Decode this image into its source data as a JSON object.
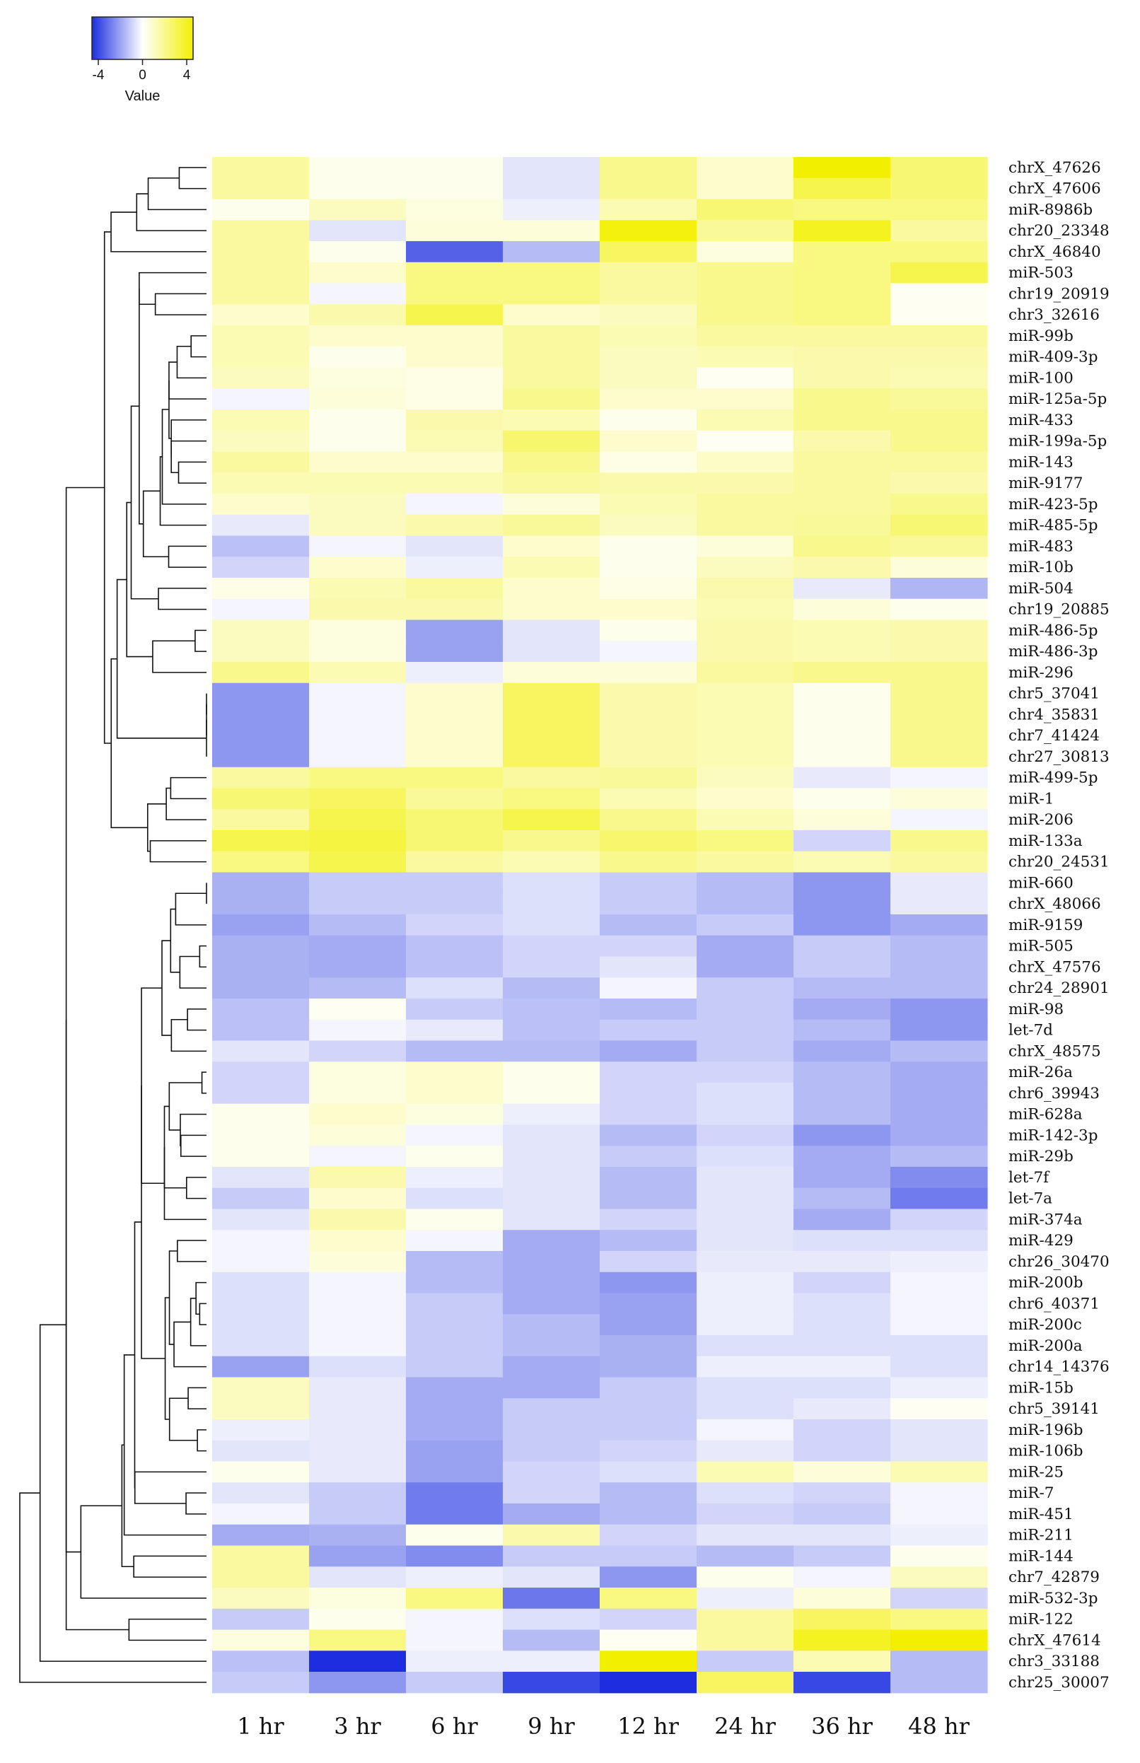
{
  "chart_data": {
    "type": "heatmap",
    "columns": [
      "1 hr",
      "3 hr",
      "6 hr",
      "9 hr",
      "12 hr",
      "24 hr",
      "36 hr",
      "48 hr"
    ],
    "rows": [
      "chrX_47626",
      "chrX_47606",
      "miR-8986b",
      "chr20_23348",
      "chrX_46840",
      "miR-503",
      "chr19_20919",
      "chr3_32616",
      "miR-99b",
      "miR-409-3p",
      "miR-100",
      "miR-125a-5p",
      "miR-433",
      "miR-199a-5p",
      "miR-143",
      "miR-9177",
      "miR-423-5p",
      "miR-485-5p",
      "miR-483",
      "miR-10b",
      "miR-504",
      "chr19_20885",
      "miR-486-5p",
      "miR-486-3p",
      "miR-296",
      "chr5_37041",
      "chr4_35831",
      "chr7_41424",
      "chr27_30813",
      "miR-499-5p",
      "miR-1",
      "miR-206",
      "miR-133a",
      "chr20_24531",
      "miR-660",
      "chrX_48066",
      "miR-9159",
      "miR-505",
      "chrX_47576",
      "chr24_28901",
      "miR-98",
      "let-7d",
      "chrX_48575",
      "miR-26a",
      "chr6_39943",
      "miR-628a",
      "miR-142-3p",
      "miR-29b",
      "let-7f",
      "let-7a",
      "miR-374a",
      "miR-429",
      "chr26_30470",
      "miR-200b",
      "chr6_40371",
      "miR-200c",
      "miR-200a",
      "chr14_14376",
      "miR-15b",
      "chr5_39141",
      "miR-196b",
      "miR-106b",
      "miR-25",
      "miR-7",
      "miR-451",
      "miR-211",
      "miR-144",
      "chr7_42879",
      "miR-532-3p",
      "miR-122",
      "chrX_47614",
      "chr3_33188",
      "chr25_30007"
    ],
    "values": [
      [
        1.5,
        0.3,
        0.3,
        -0.5,
        1.8,
        0.8,
        4.0,
        2.2
      ],
      [
        1.5,
        0.3,
        0.3,
        -0.5,
        1.8,
        0.8,
        2.8,
        2.2
      ],
      [
        0.3,
        1.0,
        0.5,
        -0.3,
        1.2,
        2.2,
        2.0,
        2.0
      ],
      [
        1.5,
        -0.5,
        0.6,
        0.6,
        3.8,
        1.6,
        3.5,
        1.5
      ],
      [
        1.5,
        0.3,
        -3.0,
        -1.3,
        2.5,
        0.5,
        2.0,
        2.0
      ],
      [
        1.5,
        0.8,
        2.0,
        2.0,
        1.5,
        1.8,
        2.0,
        2.8
      ],
      [
        1.5,
        -0.2,
        2.0,
        2.0,
        1.5,
        1.8,
        2.0,
        0.2
      ],
      [
        0.8,
        1.3,
        2.8,
        0.8,
        1.0,
        1.8,
        2.0,
        0.2
      ],
      [
        1.2,
        0.8,
        0.8,
        1.5,
        1.2,
        1.5,
        1.5,
        1.5
      ],
      [
        1.2,
        0.3,
        0.8,
        1.5,
        1.0,
        1.2,
        1.3,
        1.3
      ],
      [
        1.0,
        0.5,
        0.4,
        1.5,
        1.0,
        0.2,
        1.3,
        1.2
      ],
      [
        -0.2,
        0.6,
        0.4,
        1.8,
        0.8,
        0.8,
        1.8,
        1.6
      ],
      [
        1.2,
        0.3,
        1.3,
        1.2,
        0.3,
        1.2,
        1.8,
        1.8
      ],
      [
        1.0,
        0.3,
        1.2,
        2.3,
        0.8,
        0.2,
        1.3,
        1.8
      ],
      [
        1.5,
        0.8,
        0.8,
        1.8,
        0.4,
        0.9,
        1.5,
        1.5
      ],
      [
        1.2,
        1.2,
        1.2,
        1.5,
        1.3,
        1.3,
        1.5,
        1.3
      ],
      [
        0.8,
        1.0,
        -0.2,
        0.6,
        1.2,
        1.5,
        1.5,
        1.8
      ],
      [
        -0.4,
        1.0,
        1.3,
        1.6,
        1.0,
        1.5,
        1.6,
        2.2
      ],
      [
        -1.2,
        -0.2,
        -0.5,
        0.8,
        0.3,
        0.6,
        1.8,
        1.6
      ],
      [
        -0.8,
        0.8,
        -0.3,
        1.2,
        0.3,
        1.0,
        1.3,
        0.6
      ],
      [
        0.4,
        1.2,
        1.5,
        0.8,
        0.4,
        1.3,
        -0.4,
        -1.4
      ],
      [
        -0.2,
        1.3,
        1.3,
        0.8,
        0.8,
        1.2,
        0.6,
        0.3
      ],
      [
        1.0,
        0.5,
        -1.8,
        -0.5,
        0.3,
        1.3,
        1.2,
        1.3
      ],
      [
        1.0,
        0.5,
        -1.8,
        -0.5,
        -0.2,
        1.3,
        1.2,
        1.3
      ],
      [
        1.8,
        1.2,
        -0.3,
        0.6,
        0.6,
        1.5,
        1.8,
        1.8
      ],
      [
        -2.0,
        -0.2,
        0.8,
        2.5,
        1.3,
        1.2,
        0.3,
        1.8
      ],
      [
        -2.0,
        -0.2,
        0.8,
        2.5,
        1.3,
        1.2,
        0.3,
        1.8
      ],
      [
        -2.0,
        -0.2,
        0.8,
        2.5,
        1.3,
        1.2,
        0.3,
        1.8
      ],
      [
        -2.0,
        -0.2,
        0.8,
        2.5,
        1.3,
        1.2,
        0.3,
        1.8
      ],
      [
        1.5,
        2.0,
        2.0,
        1.5,
        1.6,
        1.0,
        -0.4,
        -0.2
      ],
      [
        2.2,
        2.5,
        1.6,
        2.0,
        1.2,
        0.8,
        0.3,
        0.6
      ],
      [
        1.5,
        2.8,
        2.2,
        2.8,
        1.8,
        1.2,
        0.6,
        -0.2
      ],
      [
        2.8,
        3.0,
        2.2,
        1.8,
        2.3,
        2.0,
        -0.8,
        1.8
      ],
      [
        2.0,
        2.8,
        1.5,
        1.2,
        1.8,
        1.5,
        1.2,
        1.5
      ],
      [
        -1.5,
        -1.0,
        -1.0,
        -0.6,
        -1.0,
        -1.3,
        -2.0,
        -0.4
      ],
      [
        -1.5,
        -1.0,
        -1.0,
        -0.6,
        -1.0,
        -1.3,
        -2.0,
        -0.4
      ],
      [
        -1.8,
        -1.3,
        -0.8,
        -0.6,
        -1.3,
        -1.0,
        -2.0,
        -1.6
      ],
      [
        -1.5,
        -1.6,
        -1.2,
        -0.8,
        -0.8,
        -1.6,
        -1.0,
        -1.3
      ],
      [
        -1.5,
        -1.6,
        -1.2,
        -0.8,
        -0.5,
        -1.6,
        -1.0,
        -1.3
      ],
      [
        -1.5,
        -1.3,
        -0.6,
        -1.3,
        -0.2,
        -1.0,
        -1.3,
        -1.3
      ],
      [
        -1.2,
        0.2,
        -1.0,
        -1.2,
        -1.3,
        -1.0,
        -1.6,
        -2.0
      ],
      [
        -1.2,
        -0.2,
        -0.4,
        -1.2,
        -1.0,
        -1.0,
        -1.3,
        -2.0
      ],
      [
        -0.5,
        -0.8,
        -1.3,
        -1.3,
        -1.6,
        -1.0,
        -1.6,
        -1.3
      ],
      [
        -0.8,
        0.5,
        0.8,
        0.3,
        -0.8,
        -0.8,
        -1.3,
        -1.6
      ],
      [
        -0.8,
        0.5,
        0.8,
        0.3,
        -0.8,
        -0.6,
        -1.3,
        -1.6
      ],
      [
        0.3,
        0.8,
        0.5,
        -0.3,
        -0.8,
        -0.6,
        -1.3,
        -1.6
      ],
      [
        0.3,
        0.6,
        -0.2,
        -0.5,
        -1.3,
        -0.8,
        -2.0,
        -1.6
      ],
      [
        0.3,
        -0.2,
        0.3,
        -0.5,
        -1.0,
        -0.6,
        -1.6,
        -1.3
      ],
      [
        -0.5,
        1.3,
        -0.3,
        -0.5,
        -1.3,
        -0.5,
        -1.6,
        -2.2
      ],
      [
        -1.0,
        0.8,
        -0.6,
        -0.5,
        -1.3,
        -0.5,
        -1.3,
        -2.5
      ],
      [
        -0.5,
        1.3,
        0.3,
        -0.5,
        -0.8,
        -0.5,
        -1.6,
        -0.8
      ],
      [
        -0.2,
        0.8,
        -0.2,
        -1.6,
        -1.3,
        -0.5,
        -0.6,
        -0.6
      ],
      [
        -0.2,
        0.6,
        -1.3,
        -1.6,
        -0.8,
        -0.4,
        -0.4,
        -0.3
      ],
      [
        -0.6,
        -0.2,
        -1.3,
        -1.6,
        -2.0,
        -0.3,
        -0.8,
        -0.2
      ],
      [
        -0.6,
        -0.2,
        -1.0,
        -1.6,
        -1.8,
        -0.3,
        -0.6,
        -0.2
      ],
      [
        -0.6,
        -0.2,
        -1.0,
        -1.3,
        -1.8,
        -0.3,
        -0.6,
        -0.2
      ],
      [
        -0.6,
        -0.2,
        -1.0,
        -1.3,
        -1.5,
        -0.6,
        -0.6,
        -0.6
      ],
      [
        -1.8,
        -0.6,
        -1.0,
        -1.6,
        -1.5,
        -0.3,
        -0.3,
        -0.6
      ],
      [
        1.0,
        -0.4,
        -1.6,
        -1.6,
        -1.0,
        -0.6,
        -0.6,
        -0.3
      ],
      [
        1.0,
        -0.4,
        -1.6,
        -1.0,
        -1.0,
        -0.6,
        -0.4,
        0.2
      ],
      [
        -0.3,
        -0.4,
        -1.6,
        -1.0,
        -1.0,
        -0.2,
        -0.8,
        -0.5
      ],
      [
        -0.5,
        -0.4,
        -1.8,
        -1.0,
        -0.8,
        -0.4,
        -0.8,
        -0.5
      ],
      [
        0.3,
        -0.4,
        -1.8,
        -0.8,
        -0.6,
        1.2,
        0.6,
        1.2
      ],
      [
        -0.5,
        -1.0,
        -2.5,
        -0.8,
        -1.3,
        -0.6,
        -0.8,
        -0.2
      ],
      [
        -0.2,
        -1.0,
        -2.5,
        -1.6,
        -1.3,
        -0.8,
        -1.0,
        -0.2
      ],
      [
        -1.6,
        -1.5,
        0.3,
        1.3,
        -0.8,
        -0.5,
        -0.5,
        -0.3
      ],
      [
        1.5,
        -1.8,
        -2.2,
        -1.0,
        -1.0,
        -1.3,
        -1.0,
        0.3
      ],
      [
        1.5,
        -0.5,
        -0.3,
        -0.5,
        -2.0,
        0.3,
        -0.2,
        1.0
      ],
      [
        1.0,
        0.5,
        2.0,
        -2.6,
        2.0,
        -0.3,
        0.6,
        -0.8
      ],
      [
        -1.0,
        0.3,
        -0.2,
        -0.6,
        -0.8,
        1.5,
        2.5,
        2.0
      ],
      [
        0.5,
        2.0,
        -0.2,
        -1.3,
        0.2,
        1.5,
        3.5,
        4.0
      ],
      [
        -1.2,
        -4.0,
        -0.3,
        -0.3,
        4.0,
        -1.0,
        1.2,
        -1.3
      ],
      [
        -1.0,
        -2.0,
        -1.0,
        -3.5,
        -4.0,
        2.5,
        -3.5,
        -1.3
      ]
    ],
    "color_scale": {
      "min": -4,
      "mid": 0,
      "max": 4,
      "low": "#1c2ee0",
      "midColor": "#ffffff",
      "high": "#f2f000"
    },
    "colorkey": {
      "title": "Value",
      "ticks": [
        -4,
        0,
        4
      ],
      "tick_labels": [
        "-4",
        "0",
        "4"
      ]
    },
    "dendrogram": "rows"
  }
}
